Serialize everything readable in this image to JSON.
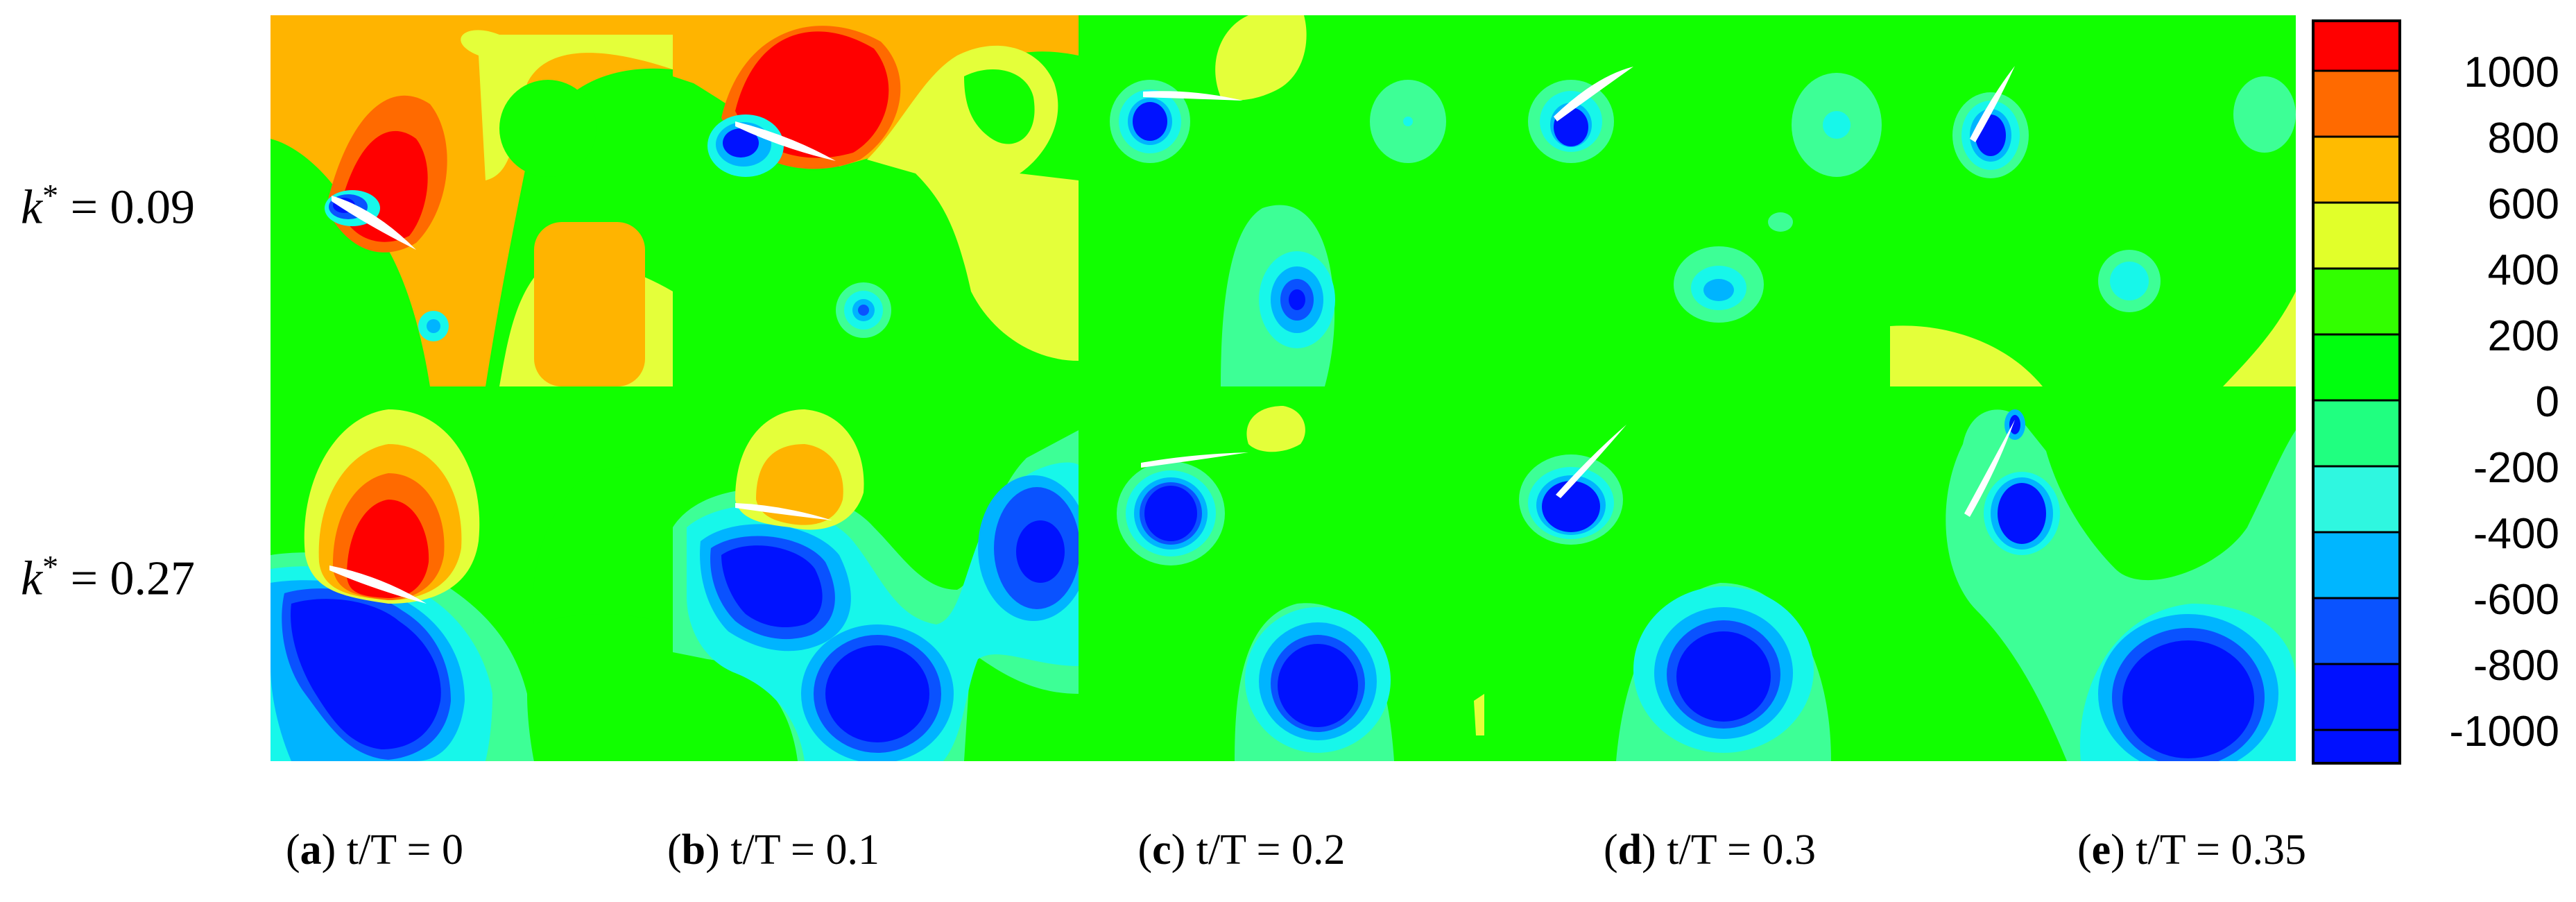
{
  "row_labels": [
    {
      "symbol": "k",
      "sup": "*",
      "value": "= 0.09"
    },
    {
      "symbol": "k",
      "sup": "*",
      "value": "= 0.27"
    }
  ],
  "captions": [
    {
      "letter": "a",
      "text": "t/T = 0"
    },
    {
      "letter": "b",
      "text": "t/T = 0.1"
    },
    {
      "letter": "c",
      "text": "t/T = 0.2"
    },
    {
      "letter": "d",
      "text": "t/T = 0.3"
    },
    {
      "letter": "e",
      "text": "t/T = 0.35"
    }
  ],
  "colorbar": {
    "levels": [
      "1000",
      "800",
      "600",
      "400",
      "200",
      "0",
      "-200",
      "-400",
      "-600",
      "-800",
      "-1000"
    ],
    "colors": [
      "#ff0000",
      "#ff6a00",
      "#ffbb00",
      "#e1ff2a",
      "#32ff00",
      "#00ff0e",
      "#20ff80",
      "#2ff7e0",
      "#00b6ff",
      "#0a53ff",
      "#0010ff"
    ]
  },
  "palette": {
    "green": "#11ff00",
    "yellow": "#e4ff3a",
    "orange": "#ffb400",
    "dark_orange": "#ff6a00",
    "red": "#ff0000",
    "cyan": "#17f7ea",
    "light_blue": "#00b4ff",
    "blue": "#0a52ff",
    "dark_blue": "#0012ff",
    "light_green": "#3dff96"
  }
}
